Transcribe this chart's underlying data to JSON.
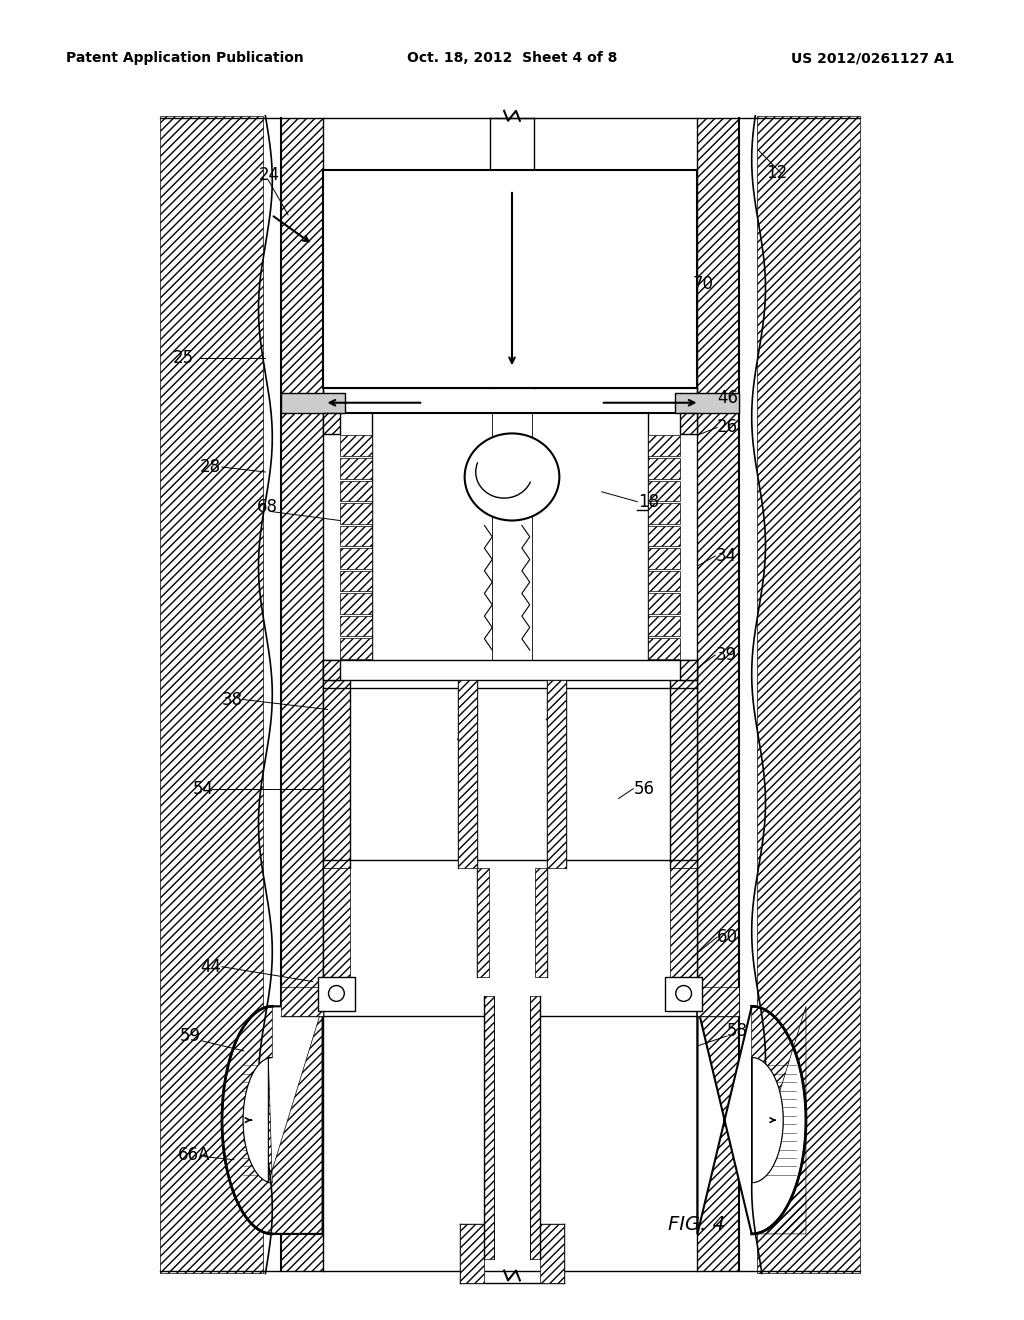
{
  "title_left": "Patent Application Publication",
  "title_mid": "Oct. 18, 2012  Sheet 4 of 8",
  "title_right": "US 2012/0261127 A1",
  "fig_label": "FIG. 4",
  "bg_color": "#ffffff",
  "line_color": "#000000"
}
